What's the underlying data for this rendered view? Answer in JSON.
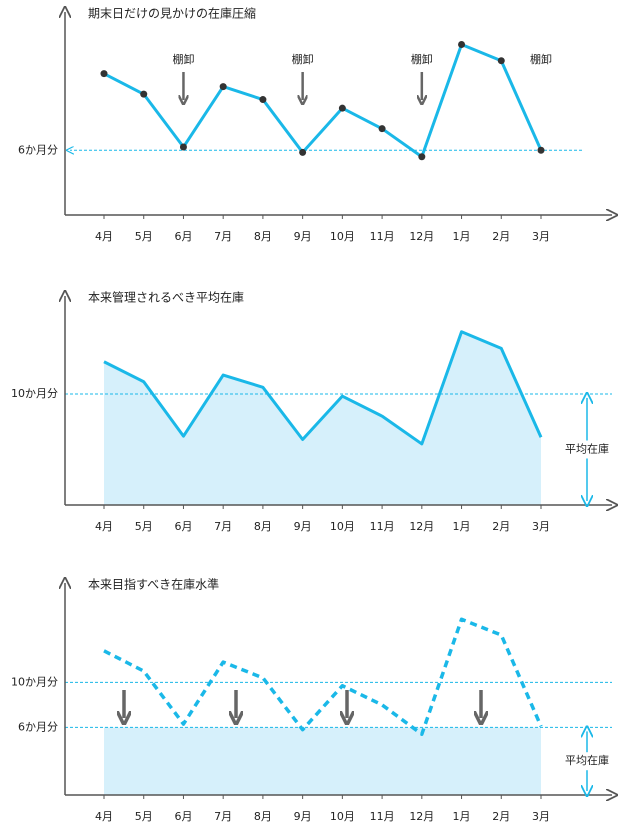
{
  "chart_data": [
    {
      "type": "line",
      "title": "期末日だけの見かけの在庫圧縮",
      "categories": [
        "4月",
        "5月",
        "6月",
        "7月",
        "8月",
        "9月",
        "10月",
        "11月",
        "12月",
        "1月",
        "2月",
        "3月"
      ],
      "values": [
        13.1,
        11.2,
        6.3,
        11.9,
        10.7,
        5.8,
        9.9,
        8.0,
        5.4,
        15.8,
        14.3,
        6.0
      ],
      "color": "#1ab8e8",
      "markers": true,
      "marker_color": "#333333",
      "ylim": [
        0,
        19
      ],
      "yticks": [
        {
          "value": 6,
          "label": "6か月分"
        }
      ],
      "annotation": "棚卸"
    },
    {
      "type": "line",
      "title": "本来管理されるべき平均在庫",
      "categories": [
        "4月",
        "5月",
        "6月",
        "7月",
        "8月",
        "9月",
        "10月",
        "11月",
        "12月",
        "1月",
        "2月",
        "3月"
      ],
      "values": [
        12.9,
        11.1,
        6.2,
        11.7,
        10.6,
        5.9,
        9.8,
        8.0,
        5.5,
        15.6,
        14.1,
        6.1
      ],
      "color": "#1ab8e8",
      "area": true,
      "area_color": "#d6f0fb",
      "ylim": [
        0,
        19
      ],
      "yticks": [
        {
          "value": 10,
          "label": "10か月分"
        }
      ],
      "annotation": "平均在庫"
    },
    {
      "type": "line",
      "title": "本来目指すべき在庫水準",
      "categories": [
        "4月",
        "5月",
        "6月",
        "7月",
        "8月",
        "9月",
        "10月",
        "11月",
        "12月",
        "1月",
        "2月",
        "3月"
      ],
      "values": [
        12.8,
        11.0,
        6.3,
        11.8,
        10.4,
        5.8,
        9.7,
        8.0,
        5.4,
        15.6,
        14.2,
        6.1
      ],
      "color": "#1ab8e8",
      "line_style": "dashed",
      "band_color": "#d6f0fb",
      "ylim": [
        0,
        19
      ],
      "yticks": [
        {
          "value": 10,
          "label": "10か月分"
        },
        {
          "value": 6,
          "label": "6か月分"
        }
      ],
      "annotation": "平均在庫"
    }
  ]
}
